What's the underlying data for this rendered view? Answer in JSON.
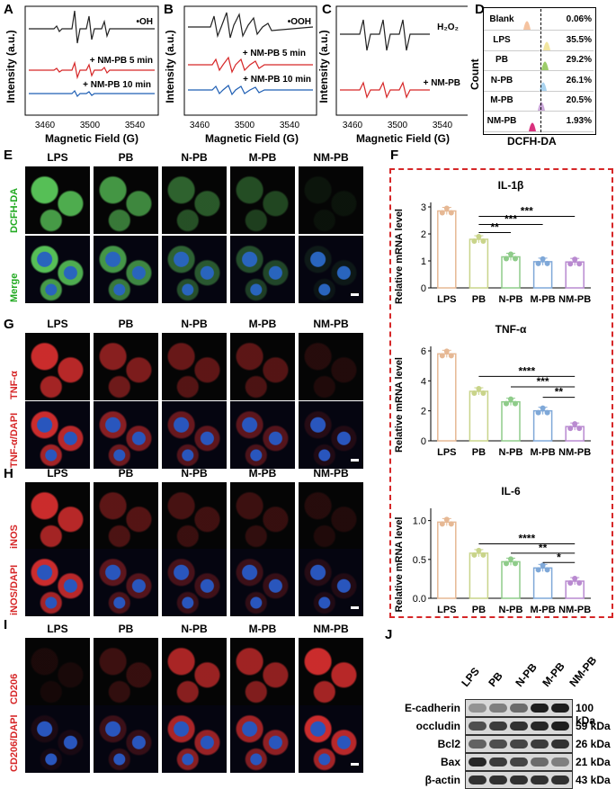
{
  "panels": {
    "a": "A",
    "b": "B",
    "c": "C",
    "d": "D",
    "e": "E",
    "f": "F",
    "g": "G",
    "h": "H",
    "i": "I",
    "j": "J"
  },
  "epr": {
    "ylabel": "Intensity (a.u.)",
    "xlabel": "Magnetic Field (G)",
    "ticks": [
      "3460",
      "3500",
      "3540"
    ],
    "a_labels": [
      "•OH",
      "+ NM-PB 5 min",
      "+ NM-PB 10 min"
    ],
    "b_labels": [
      "•OOH",
      "+ NM-PB 5 min",
      "+ NM-PB 10 min"
    ],
    "c_labels": [
      "H₂O₂",
      "+ NM-PB"
    ],
    "colors": {
      "black": "#222222",
      "red": "#d62728",
      "blue": "#1f5fb4"
    }
  },
  "flow": {
    "ylabel": "Count",
    "xlabel": "DCFH-DA",
    "rows": [
      {
        "name": "Blank",
        "value": "0.06%",
        "color": "#f5c3a0"
      },
      {
        "name": "LPS",
        "value": "35.5%",
        "color": "#f2e6a0"
      },
      {
        "name": "PB",
        "value": "29.2%",
        "color": "#9ccc6a"
      },
      {
        "name": "N-PB",
        "value": "26.1%",
        "color": "#a9d3ef"
      },
      {
        "name": "M-PB",
        "value": "20.5%",
        "color": "#c9a6d8"
      },
      {
        "name": "NM-PB",
        "value": "1.93%",
        "color": "#d9317d"
      }
    ]
  },
  "micro": {
    "columns": [
      "LPS",
      "PB",
      "N-PB",
      "M-PB",
      "NM-PB"
    ],
    "e_rows": [
      "DCFH-DA",
      "Merge"
    ],
    "g_rows": [
      "TNF-α",
      "TNF-α/DAPI"
    ],
    "h_rows": [
      "iNOS",
      "iNOS/DAPI"
    ],
    "i_rows": [
      "CD206",
      "CD206/DAPI"
    ]
  },
  "chart_data": [
    {
      "type": "bar",
      "title": "IL-1β",
      "ylabel": "Relative mRNA level",
      "categories": [
        "LPS",
        "PB",
        "N-PB",
        "M-PB",
        "NM-PB"
      ],
      "values": [
        2.85,
        1.8,
        1.15,
        0.97,
        0.96
      ],
      "ylim": [
        0,
        3
      ],
      "yticks": [
        "0",
        "1",
        "2",
        "3"
      ],
      "ytick_values": [
        0,
        1,
        2,
        3
      ],
      "significance": [
        "**",
        "***",
        "***"
      ],
      "colors": [
        "#e6b894",
        "#c9d48a",
        "#8fcc8a",
        "#7fa8d8",
        "#b98ad0"
      ]
    },
    {
      "type": "bar",
      "title": "TNF-α",
      "ylabel": "Relative mRNA level",
      "categories": [
        "LPS",
        "PB",
        "N-PB",
        "M-PB",
        "NM-PB"
      ],
      "values": [
        5.8,
        3.3,
        2.6,
        2.0,
        0.95
      ],
      "ylim": [
        0,
        6
      ],
      "yticks": [
        "0",
        "2",
        "4",
        "6"
      ],
      "ytick_values": [
        0,
        2,
        4,
        6
      ],
      "significance": [
        "****",
        "***",
        "**"
      ],
      "colors": [
        "#e6b894",
        "#c9d48a",
        "#8fcc8a",
        "#7fa8d8",
        "#b98ad0"
      ]
    },
    {
      "type": "bar",
      "title": "IL-6",
      "ylabel": "Relative mRNA level",
      "categories": [
        "LPS",
        "PB",
        "N-PB",
        "M-PB",
        "NM-PB"
      ],
      "values": [
        0.98,
        0.58,
        0.47,
        0.39,
        0.22
      ],
      "ylim": [
        0,
        1.1
      ],
      "yticks": [
        "0.0",
        "0.5",
        "1.0"
      ],
      "ytick_values": [
        0,
        0.5,
        1.0
      ],
      "significance": [
        "****",
        "**",
        "*"
      ],
      "colors": [
        "#e6b894",
        "#c9d48a",
        "#8fcc8a",
        "#7fa8d8",
        "#b98ad0"
      ]
    }
  ],
  "blot": {
    "lanes": [
      "LPS",
      "PB",
      "N-PB",
      "M-PB",
      "NM-PB"
    ],
    "rows": [
      {
        "name": "E-cadherin",
        "kda": "100 kDa",
        "intensity": [
          0.35,
          0.45,
          0.55,
          0.95,
          0.95
        ]
      },
      {
        "name": "occludin",
        "kda": "59 kDa",
        "intensity": [
          0.7,
          0.8,
          0.85,
          0.9,
          0.95
        ]
      },
      {
        "name": "Bcl2",
        "kda": "26 kDa",
        "intensity": [
          0.6,
          0.7,
          0.75,
          0.8,
          0.85
        ]
      },
      {
        "name": "Bax",
        "kda": "21 kDa",
        "intensity": [
          0.9,
          0.8,
          0.75,
          0.55,
          0.45
        ]
      },
      {
        "name": "β-actin",
        "kda": "43 kDa",
        "intensity": [
          0.85,
          0.85,
          0.85,
          0.85,
          0.85
        ]
      }
    ]
  }
}
